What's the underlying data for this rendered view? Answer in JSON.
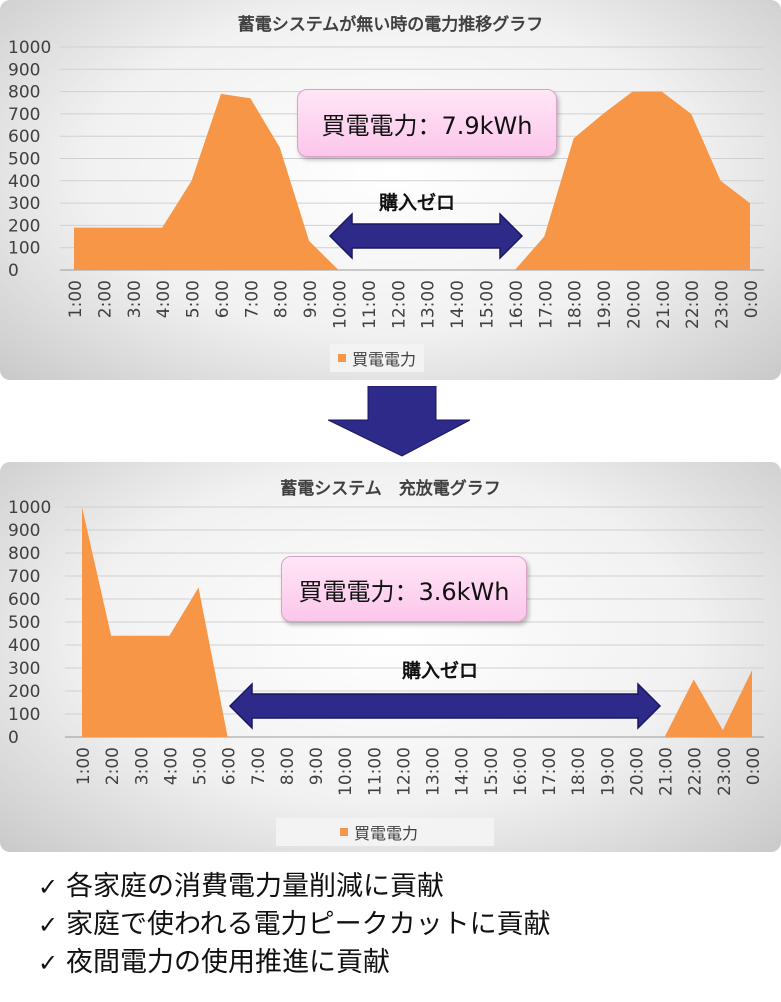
{
  "charts": [
    {
      "title": "蓄電システムが無い時の電力推移グラフ",
      "callout": "買電電力：7.9kWh",
      "zero_label": "購入ゼロ",
      "legend": "買電電力"
    },
    {
      "title": "蓄電システム　充放電グラフ",
      "callout": "買電電力：3.6kWh",
      "zero_label": "購入ゼロ",
      "legend": "買電電力"
    }
  ],
  "bullets": [
    "各家庭の消費電力量削減に貢献",
    "家庭で使われる電力ピークカットに貢献",
    "夜間電力の使用推進に貢献"
  ],
  "check_symbol": "✓",
  "colors": {
    "area": "#f79646",
    "arrow": "#2e2a8a",
    "arrow_stroke": "#1a1760"
  },
  "chart_data": [
    {
      "type": "area",
      "title": "蓄電システムが無い時の電力推移グラフ",
      "categories": [
        "1:00",
        "2:00",
        "3:00",
        "4:00",
        "5:00",
        "6:00",
        "7:00",
        "8:00",
        "9:00",
        "10:00",
        "11:00",
        "12:00",
        "13:00",
        "14:00",
        "15:00",
        "16:00",
        "17:00",
        "18:00",
        "19:00",
        "20:00",
        "21:00",
        "22:00",
        "23:00",
        "0:00"
      ],
      "series": [
        {
          "name": "買電電力",
          "values": [
            190,
            190,
            190,
            190,
            400,
            790,
            770,
            550,
            130,
            0,
            0,
            0,
            0,
            0,
            0,
            0,
            150,
            590,
            700,
            800,
            800,
            700,
            400,
            300
          ]
        }
      ],
      "ylim": [
        0,
        1000
      ],
      "yticks": [
        0,
        100,
        200,
        300,
        400,
        500,
        600,
        700,
        800,
        900,
        1000
      ],
      "grid": true,
      "legend": "bottom"
    },
    {
      "type": "area",
      "title": "蓄電システム　充放電グラフ",
      "categories": [
        "1:00",
        "2:00",
        "3:00",
        "4:00",
        "5:00",
        "6:00",
        "7:00",
        "8:00",
        "9:00",
        "10:00",
        "11:00",
        "12:00",
        "13:00",
        "14:00",
        "15:00",
        "16:00",
        "17:00",
        "18:00",
        "19:00",
        "20:00",
        "21:00",
        "22:00",
        "23:00",
        "0:00"
      ],
      "series": [
        {
          "name": "買電電力",
          "values": [
            1000,
            440,
            440,
            440,
            650,
            0,
            0,
            0,
            0,
            0,
            0,
            0,
            0,
            0,
            0,
            0,
            0,
            0,
            0,
            0,
            0,
            250,
            30,
            290
          ]
        }
      ],
      "ylim": [
        0,
        1000
      ],
      "yticks": [
        0,
        100,
        200,
        300,
        400,
        500,
        600,
        700,
        800,
        900,
        1000
      ],
      "grid": true,
      "legend": "bottom"
    }
  ]
}
